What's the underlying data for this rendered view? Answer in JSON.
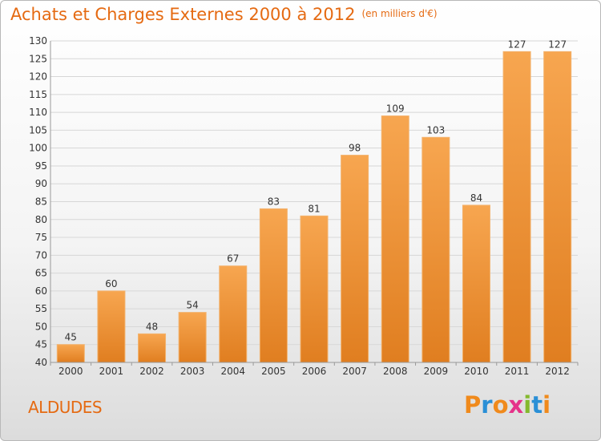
{
  "title": "Achats et Charges Externes 2000 à 2012",
  "subtitle": "(en milliers d'€)",
  "commune": "ALDUDES",
  "logo": {
    "text": "Proxiti",
    "letter_colors": [
      "#f08a1c",
      "#2a8fd6",
      "#f08a1c",
      "#e5338a",
      "#84b92e",
      "#2a8fd6",
      "#f08a1c"
    ]
  },
  "colors": {
    "accent": "#e56a12",
    "bar_light": "#f7a650",
    "bar_dark": "#e07e20",
    "grid": "#d7d7d7",
    "axis_text": "#333333"
  },
  "chart_data": {
    "type": "bar",
    "categories": [
      "2000",
      "2001",
      "2002",
      "2003",
      "2004",
      "2005",
      "2006",
      "2007",
      "2008",
      "2009",
      "2010",
      "2011",
      "2012"
    ],
    "values": [
      45,
      60,
      48,
      54,
      67,
      83,
      81,
      98,
      109,
      103,
      84,
      127,
      127
    ],
    "value_labels": [
      "45",
      "60",
      "48",
      "54",
      "67",
      "83",
      "81",
      "98",
      "109",
      "103",
      "84",
      "127",
      "127"
    ],
    "title": "Achats et Charges Externes 2000 à 2012",
    "xlabel": "",
    "ylabel": "",
    "ylim": [
      40,
      130
    ],
    "yticks": [
      40,
      45,
      50,
      55,
      60,
      65,
      70,
      75,
      80,
      85,
      90,
      95,
      100,
      105,
      110,
      115,
      120,
      125,
      130
    ],
    "grid": true,
    "legend": "none"
  }
}
